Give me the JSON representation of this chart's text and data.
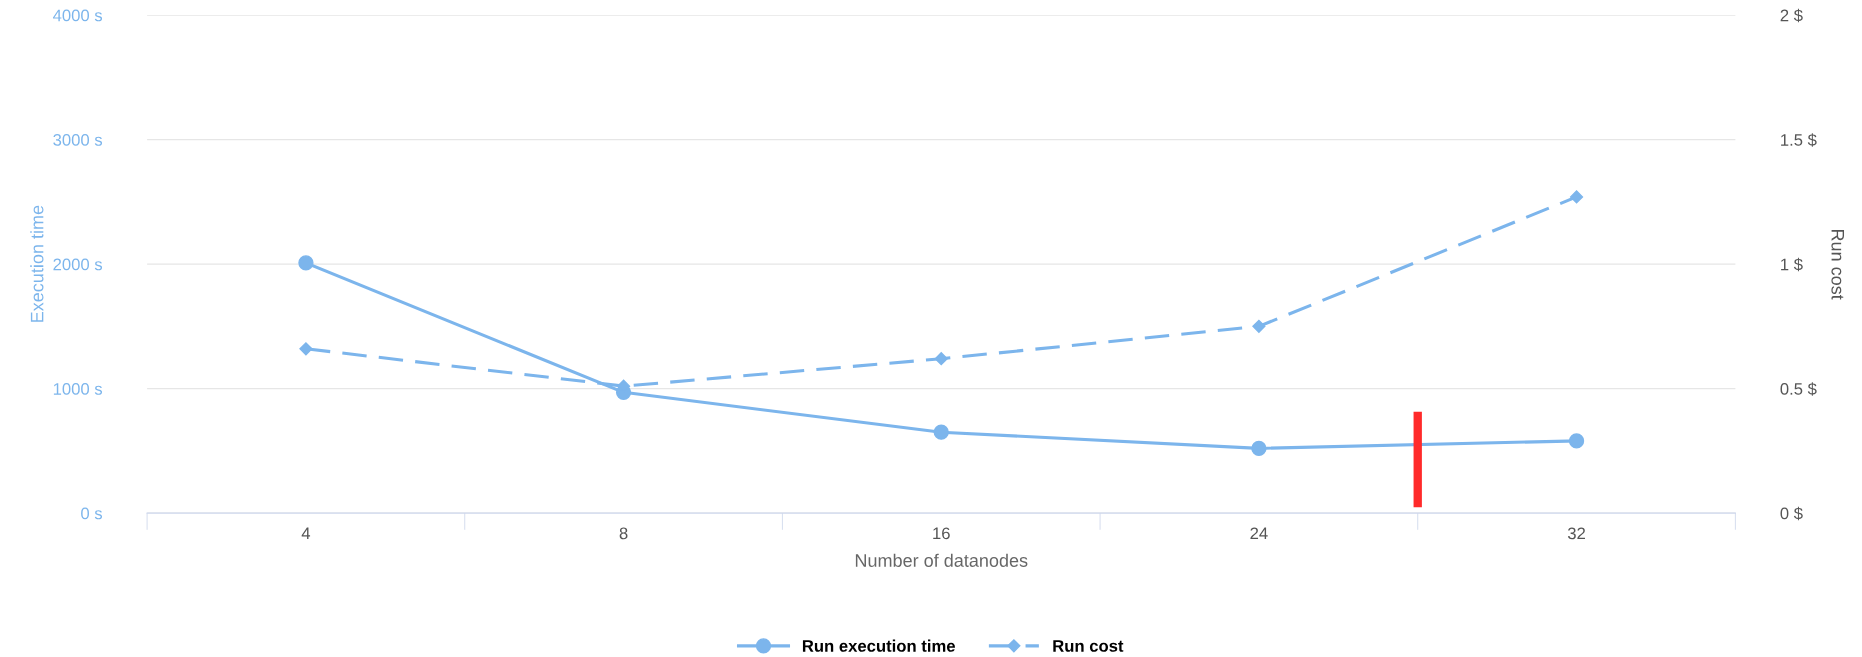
{
  "chart_data": {
    "type": "line",
    "xlabel": "Number of datanodes",
    "ylabel": "Execution time",
    "y2label": "Run cost",
    "categories": [
      "4",
      "8",
      "16",
      "24",
      "32"
    ],
    "series": [
      {
        "name": "Run execution time",
        "color": "#7cb5ec",
        "values": [
          2010,
          970,
          650,
          520,
          580
        ],
        "marker": "circle",
        "line_style": "solid"
      },
      {
        "name": "Run cost",
        "color": "#7cb5ec",
        "values": [
          0.66,
          0.51,
          0.62,
          0.75,
          1.27
        ],
        "axis": "y2",
        "marker": "diamond",
        "line_style": "dashed"
      }
    ],
    "ylim": [
      0,
      4000
    ],
    "yticks": [
      {
        "value": 0,
        "label": "0 s"
      },
      {
        "value": 1000,
        "label": "1000 s"
      },
      {
        "value": 2000,
        "label": "2000 s"
      },
      {
        "value": 3000,
        "label": "3000 s"
      },
      {
        "value": 4000,
        "label": "4000 s"
      }
    ],
    "y2lim": [
      0,
      2
    ],
    "y2ticks": [
      {
        "value": 0,
        "label": "0 $"
      },
      {
        "value": 0.5,
        "label": "0.5 $"
      },
      {
        "value": 1,
        "label": "1 $"
      },
      {
        "value": 1.5,
        "label": "1.5 $"
      },
      {
        "value": 2,
        "label": "2 $"
      }
    ],
    "grid": "y",
    "legend": "bottom"
  }
}
